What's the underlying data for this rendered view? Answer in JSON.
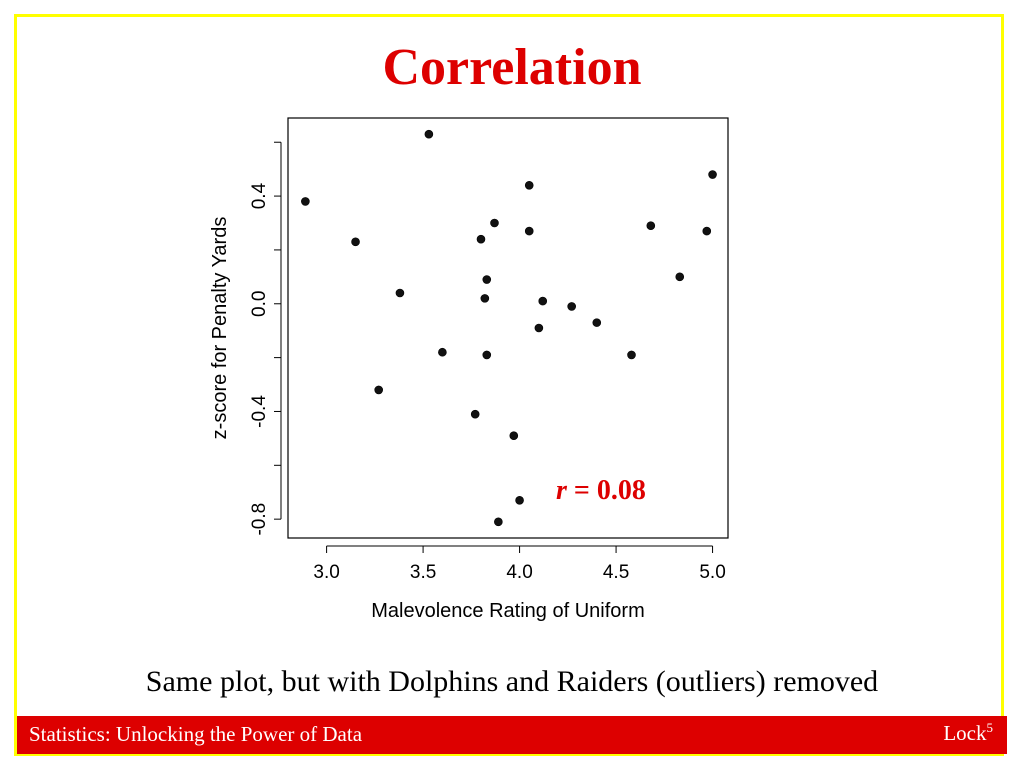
{
  "slide": {
    "title": "Correlation",
    "caption": "Same plot, but with Dolphins and Raiders (outliers) removed",
    "footer_left": "Statistics: Unlocking the Power of Data",
    "footer_right": "Lock",
    "footer_superscript": "5",
    "colors": {
      "accent": "#dd0000",
      "border": "#ffff00"
    }
  },
  "chart_data": {
    "type": "scatter",
    "xlabel": "Malevolence Rating of Uniform",
    "ylabel": "z-score for Penalty Yards",
    "xlim": [
      2.8,
      5.08
    ],
    "ylim": [
      -0.87,
      0.69
    ],
    "xticks": [
      3.0,
      3.5,
      4.0,
      4.5,
      5.0
    ],
    "xtick_labels": [
      "3.0",
      "3.5",
      "4.0",
      "4.5",
      "5.0"
    ],
    "yticks": [
      -0.8,
      -0.6,
      -0.4,
      -0.2,
      0.0,
      0.2,
      0.4,
      0.6
    ],
    "ytick_labels": [
      "-0.8",
      "",
      "-0.4",
      "",
      "0.0",
      "",
      "0.4",
      ""
    ],
    "annotation": {
      "label": "r",
      "text": " = 0.08"
    },
    "points": [
      {
        "x": 2.89,
        "y": 0.38
      },
      {
        "x": 3.15,
        "y": 0.23
      },
      {
        "x": 3.27,
        "y": -0.32
      },
      {
        "x": 3.38,
        "y": 0.04
      },
      {
        "x": 3.53,
        "y": 0.63
      },
      {
        "x": 3.6,
        "y": -0.18
      },
      {
        "x": 3.77,
        "y": -0.41
      },
      {
        "x": 3.8,
        "y": 0.24
      },
      {
        "x": 3.82,
        "y": 0.02
      },
      {
        "x": 3.83,
        "y": 0.09
      },
      {
        "x": 3.83,
        "y": -0.19
      },
      {
        "x": 3.87,
        "y": 0.3
      },
      {
        "x": 3.89,
        "y": -0.81
      },
      {
        "x": 3.97,
        "y": -0.49
      },
      {
        "x": 4.0,
        "y": -0.73
      },
      {
        "x": 4.05,
        "y": 0.44
      },
      {
        "x": 4.05,
        "y": 0.27
      },
      {
        "x": 4.1,
        "y": -0.09
      },
      {
        "x": 4.12,
        "y": 0.01
      },
      {
        "x": 4.27,
        "y": -0.01
      },
      {
        "x": 4.4,
        "y": -0.07
      },
      {
        "x": 4.58,
        "y": -0.19
      },
      {
        "x": 4.68,
        "y": 0.29
      },
      {
        "x": 4.83,
        "y": 0.1
      },
      {
        "x": 4.97,
        "y": 0.27
      },
      {
        "x": 5.0,
        "y": 0.48
      }
    ]
  }
}
